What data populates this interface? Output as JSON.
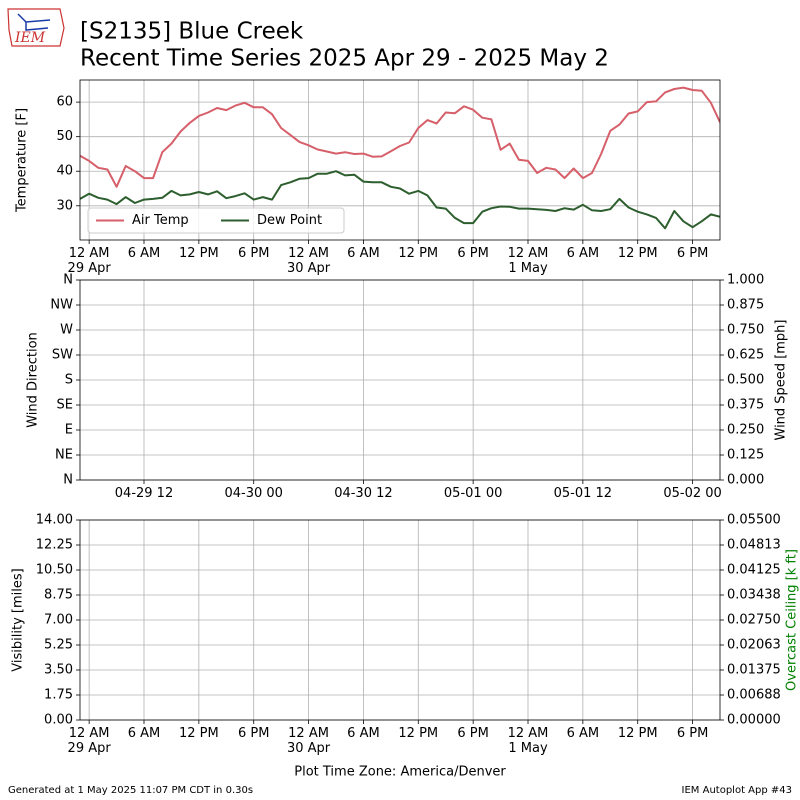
{
  "header": {
    "title": "[S2135] Blue Creek",
    "subtitle": "Recent Time Series 2025 Apr 29 - 2025 May 2",
    "logo_text": "IEM"
  },
  "chart_data": [
    {
      "type": "line",
      "ylabel": "Temperature [F]",
      "xlim": [
        "2025-04-28T23:00",
        "2025-05-01T21:00"
      ],
      "ylim": [
        20.1,
        66.4
      ],
      "yticks": [
        30,
        40,
        50,
        60
      ],
      "grid": true,
      "legend": "lower left",
      "xticks": [
        {
          "value": "2025-04-29T00:00",
          "label": "12 AM\n29 Apr"
        },
        {
          "value": "2025-04-29T06:00",
          "label": "6 AM"
        },
        {
          "value": "2025-04-29T12:00",
          "label": "12 PM"
        },
        {
          "value": "2025-04-29T18:00",
          "label": "6 PM"
        },
        {
          "value": "2025-04-30T00:00",
          "label": "12 AM\n30 Apr"
        },
        {
          "value": "2025-04-30T06:00",
          "label": "6 AM"
        },
        {
          "value": "2025-04-30T12:00",
          "label": "12 PM"
        },
        {
          "value": "2025-04-30T18:00",
          "label": "6 PM"
        },
        {
          "value": "2025-05-01T00:00",
          "label": "12 AM\n1 May"
        },
        {
          "value": "2025-05-01T06:00",
          "label": "6 AM"
        },
        {
          "value": "2025-05-01T12:00",
          "label": "12 PM"
        },
        {
          "value": "2025-05-01T18:00",
          "label": "6 PM"
        }
      ],
      "x": [
        "2025-04-28T23:00",
        "2025-04-29T00:00",
        "2025-04-29T01:00",
        "2025-04-29T02:00",
        "2025-04-29T03:00",
        "2025-04-29T04:00",
        "2025-04-29T05:00",
        "2025-04-29T06:00",
        "2025-04-29T07:00",
        "2025-04-29T08:00",
        "2025-04-29T09:00",
        "2025-04-29T10:00",
        "2025-04-29T11:00",
        "2025-04-29T12:00",
        "2025-04-29T13:00",
        "2025-04-29T14:00",
        "2025-04-29T15:00",
        "2025-04-29T16:00",
        "2025-04-29T17:00",
        "2025-04-29T18:00",
        "2025-04-29T19:00",
        "2025-04-29T20:00",
        "2025-04-29T21:00",
        "2025-04-29T22:00",
        "2025-04-29T23:00",
        "2025-04-30T00:00",
        "2025-04-30T01:00",
        "2025-04-30T02:00",
        "2025-04-30T03:00",
        "2025-04-30T04:00",
        "2025-04-30T05:00",
        "2025-04-30T06:00",
        "2025-04-30T07:00",
        "2025-04-30T08:00",
        "2025-04-30T09:00",
        "2025-04-30T10:00",
        "2025-04-30T11:00",
        "2025-04-30T12:00",
        "2025-04-30T13:00",
        "2025-04-30T14:00",
        "2025-04-30T15:00",
        "2025-04-30T16:00",
        "2025-04-30T17:00",
        "2025-04-30T18:00",
        "2025-04-30T19:00",
        "2025-04-30T20:00",
        "2025-04-30T21:00",
        "2025-04-30T22:00",
        "2025-04-30T23:00",
        "2025-05-01T00:00",
        "2025-05-01T01:00",
        "2025-05-01T02:00",
        "2025-05-01T03:00",
        "2025-05-01T04:00",
        "2025-05-01T05:00",
        "2025-05-01T06:00",
        "2025-05-01T07:00",
        "2025-05-01T08:00",
        "2025-05-01T09:00",
        "2025-05-01T10:00",
        "2025-05-01T11:00",
        "2025-05-01T12:00",
        "2025-05-01T13:00",
        "2025-05-01T14:00",
        "2025-05-01T15:00",
        "2025-05-01T16:00",
        "2025-05-01T17:00",
        "2025-05-01T18:00",
        "2025-05-01T19:00",
        "2025-05-01T20:00",
        "2025-05-01T21:00"
      ],
      "series": [
        {
          "name": "Air Temp",
          "color": "#d65f6a",
          "values": [
            44.5,
            43,
            41,
            40.5,
            35.5,
            41.5,
            40,
            38,
            38,
            45.5,
            48,
            51.5,
            54,
            56,
            57,
            58.3,
            57.7,
            59,
            59.8,
            58.5,
            58.5,
            56.5,
            52.5,
            50.5,
            48.5,
            47.5,
            46.3,
            45.7,
            45.1,
            45.5,
            45,
            45.1,
            44.2,
            44.3,
            45.8,
            47.3,
            48.3,
            52.5,
            54.8,
            53.8,
            57,
            56.8,
            58.8,
            57.8,
            55.5,
            55,
            46.2,
            48,
            43.3,
            43,
            39.5,
            41,
            40.5,
            38,
            40.8,
            38,
            39.5,
            45,
            51.7,
            53.5,
            56.7,
            57.3,
            60,
            60.2,
            62.8,
            63.8,
            64.2,
            63.5,
            63.3,
            59.8,
            54.2
          ]
        },
        {
          "name": "Dew Point",
          "color": "#2d5e2e",
          "values": [
            32,
            33.5,
            32.3,
            31.8,
            30.5,
            32.5,
            30.8,
            31.8,
            32,
            32.3,
            34.3,
            33,
            33.3,
            34,
            33.3,
            34.2,
            32.2,
            32.8,
            33.6,
            31.8,
            32.5,
            31.8,
            36,
            36.8,
            37.8,
            38,
            39.3,
            39.3,
            40,
            38.8,
            39,
            37,
            36.8,
            36.8,
            35.5,
            35,
            33.5,
            34.3,
            33,
            29.5,
            29.2,
            26.5,
            25,
            25,
            28.3,
            29.3,
            29.8,
            29.7,
            29.2,
            29.2,
            29,
            28.8,
            28.5,
            29.3,
            28.9,
            30.3,
            28.7,
            28.5,
            29,
            32,
            29.5,
            28.3,
            27.5,
            26.5,
            23.5,
            28.5,
            25.5,
            23.8,
            25.5,
            27.5,
            26.8
          ]
        }
      ]
    },
    {
      "type": "line",
      "ylabel": "Wind Direction",
      "y2label": "Wind Speed [mph]",
      "xlim": [
        "2025-04-28T23:00",
        "2025-05-01T21:00"
      ],
      "ylim": [
        0,
        360
      ],
      "y2lim": [
        0,
        1
      ],
      "grid": true,
      "yticks": [
        {
          "value": 0,
          "label": "N"
        },
        {
          "value": 45,
          "label": "NE"
        },
        {
          "value": 90,
          "label": "E"
        },
        {
          "value": 135,
          "label": "SE"
        },
        {
          "value": 180,
          "label": "S"
        },
        {
          "value": 225,
          "label": "SW"
        },
        {
          "value": 270,
          "label": "W"
        },
        {
          "value": 315,
          "label": "NW"
        },
        {
          "value": 360,
          "label": "N"
        }
      ],
      "y2ticks": [
        {
          "value": 0,
          "label": "0.000"
        },
        {
          "value": 0.125,
          "label": "0.125"
        },
        {
          "value": 0.25,
          "label": "0.250"
        },
        {
          "value": 0.375,
          "label": "0.375"
        },
        {
          "value": 0.5,
          "label": "0.500"
        },
        {
          "value": 0.625,
          "label": "0.625"
        },
        {
          "value": 0.75,
          "label": "0.750"
        },
        {
          "value": 0.875,
          "label": "0.875"
        },
        {
          "value": 1,
          "label": "1.000"
        }
      ],
      "xticks": [
        {
          "value": "2025-04-29T06:00",
          "label": "04-29 12"
        },
        {
          "value": "2025-04-29T18:00",
          "label": "04-30 00"
        },
        {
          "value": "2025-04-30T06:00",
          "label": "04-30 12"
        },
        {
          "value": "2025-04-30T18:00",
          "label": "05-01 00"
        },
        {
          "value": "2025-05-01T06:00",
          "label": "05-01 12"
        },
        {
          "value": "2025-05-01T18:00",
          "label": "05-02 00"
        }
      ]
    },
    {
      "type": "line",
      "ylabel": "Visibility [miles]",
      "y2label": "Overcast Ceiling [k ft]",
      "y2label_color": "#008000",
      "xlabel": "Plot Time Zone: America/Denver",
      "xlim": [
        "2025-04-28T23:00",
        "2025-05-01T21:00"
      ],
      "ylim": [
        0,
        14
      ],
      "y2lim": [
        0,
        0.055
      ],
      "grid": true,
      "yticks": [
        {
          "value": 0,
          "label": "0.00"
        },
        {
          "value": 1.75,
          "label": "1.75"
        },
        {
          "value": 3.5,
          "label": "3.50"
        },
        {
          "value": 5.25,
          "label": "5.25"
        },
        {
          "value": 7,
          "label": "7.00"
        },
        {
          "value": 8.75,
          "label": "8.75"
        },
        {
          "value": 10.5,
          "label": "10.50"
        },
        {
          "value": 12.25,
          "label": "12.25"
        },
        {
          "value": 14,
          "label": "14.00"
        }
      ],
      "y2ticks": [
        {
          "value": 0,
          "label": "0.00000"
        },
        {
          "value": 0.006875,
          "label": "0.00688"
        },
        {
          "value": 0.01375,
          "label": "0.01375"
        },
        {
          "value": 0.020625,
          "label": "0.02063"
        },
        {
          "value": 0.0275,
          "label": "0.02750"
        },
        {
          "value": 0.034375,
          "label": "0.03438"
        },
        {
          "value": 0.04125,
          "label": "0.04125"
        },
        {
          "value": 0.048125,
          "label": "0.04813"
        },
        {
          "value": 0.055,
          "label": "0.05500"
        }
      ],
      "xticks": [
        {
          "value": "2025-04-29T00:00",
          "label": "12 AM\n29 Apr"
        },
        {
          "value": "2025-04-29T06:00",
          "label": "6 AM"
        },
        {
          "value": "2025-04-29T12:00",
          "label": "12 PM"
        },
        {
          "value": "2025-04-29T18:00",
          "label": "6 PM"
        },
        {
          "value": "2025-04-30T00:00",
          "label": "12 AM\n30 Apr"
        },
        {
          "value": "2025-04-30T06:00",
          "label": "6 AM"
        },
        {
          "value": "2025-04-30T12:00",
          "label": "12 PM"
        },
        {
          "value": "2025-04-30T18:00",
          "label": "6 PM"
        },
        {
          "value": "2025-05-01T00:00",
          "label": "12 AM\n1 May"
        },
        {
          "value": "2025-05-01T06:00",
          "label": "6 AM"
        },
        {
          "value": "2025-05-01T12:00",
          "label": "12 PM"
        },
        {
          "value": "2025-05-01T18:00",
          "label": "6 PM"
        }
      ]
    }
  ],
  "footer": {
    "left": "Generated at 1 May 2025 11:07 PM CDT in 0.30s",
    "right": "IEM Autoplot App #43"
  }
}
